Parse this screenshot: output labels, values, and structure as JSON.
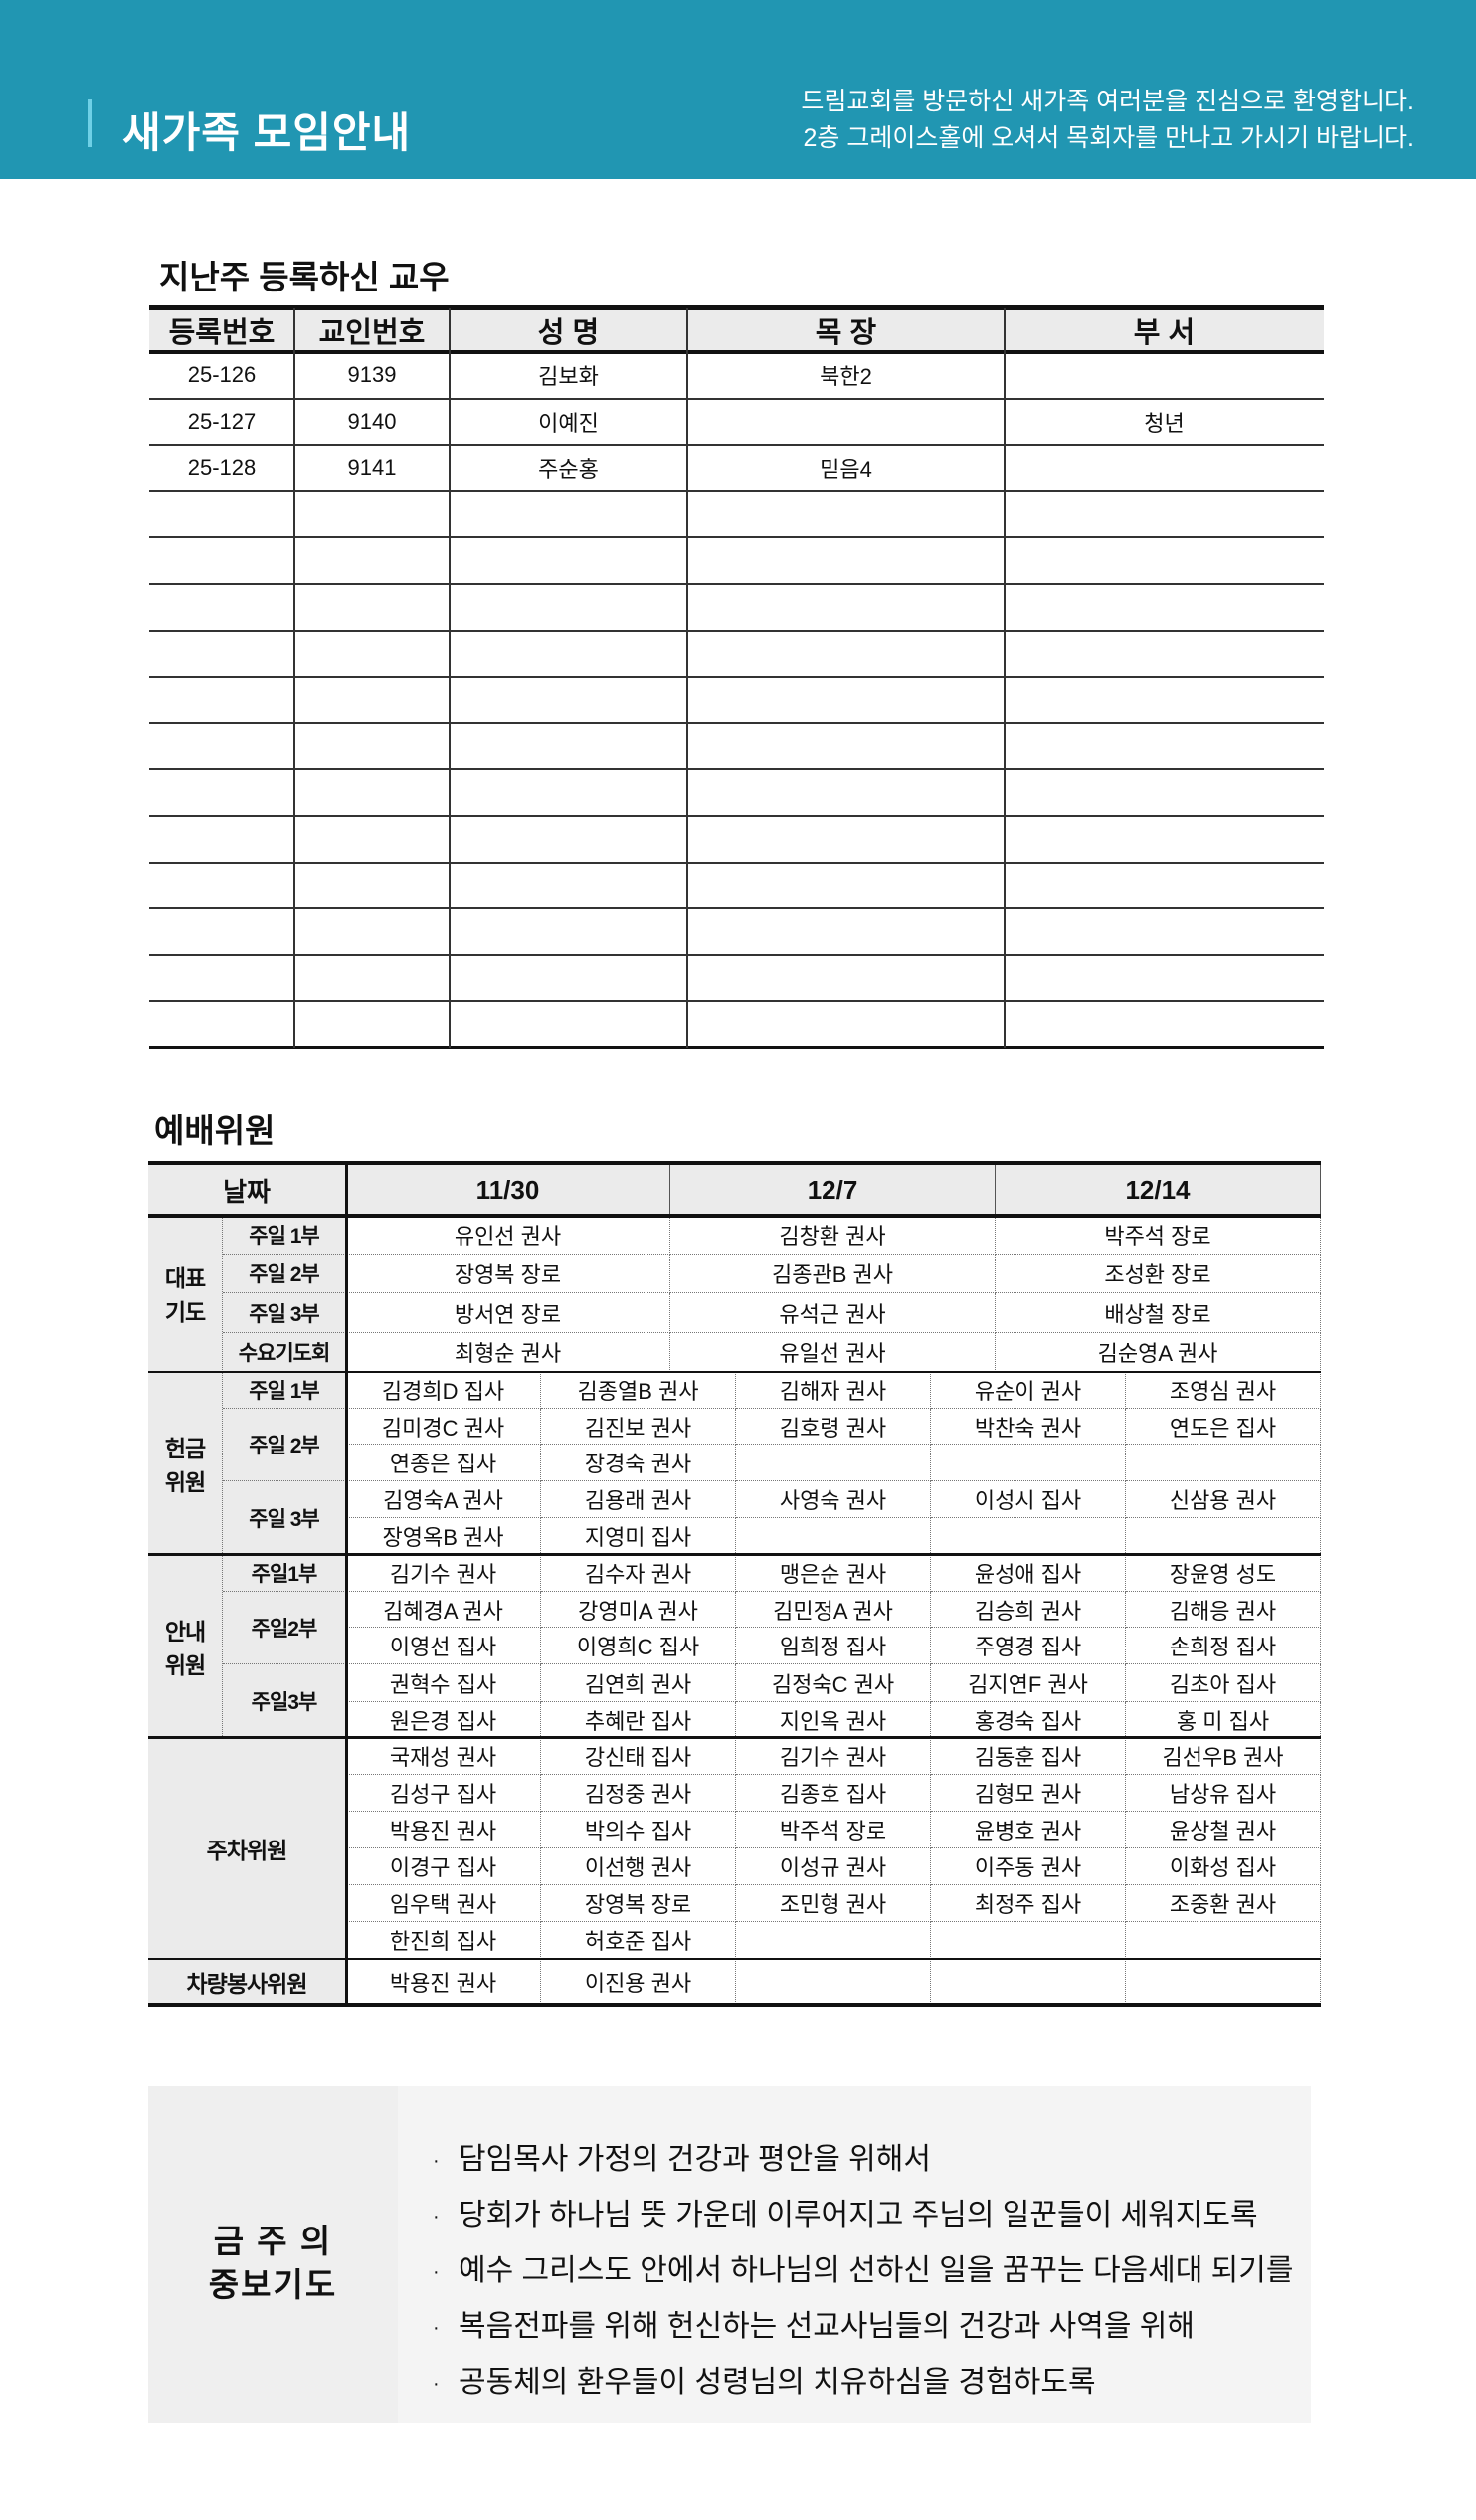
{
  "header": {
    "title": "새가족 모임안내",
    "message_line1": "드림교회를 방문하신 새가족 여러분을 진심으로 환영합니다.",
    "message_line2": "2층 그레이스홀에 오셔서 목회자를 만나고 가시기 바랍니다.",
    "bg_color": "#2196b2"
  },
  "registrants": {
    "title": "지난주 등록하신 교우",
    "columns": [
      "등록번호",
      "교인번호",
      "성 명",
      "목 장",
      "부 서"
    ],
    "rows": [
      [
        "25-126",
        "9139",
        "김보화",
        "북한2",
        ""
      ],
      [
        "25-127",
        "9140",
        "이예진",
        "",
        "청년"
      ],
      [
        "25-128",
        "9141",
        "주순홍",
        "믿음4",
        ""
      ]
    ]
  },
  "worship": {
    "title": "예배위원",
    "date_label": "날짜",
    "dates": [
      "11/30",
      "12/7",
      "12/14"
    ],
    "prayer": {
      "label": "대표\n기도",
      "rows": [
        {
          "service": "주일 1부",
          "names": [
            "유인선 권사",
            "김창환 권사",
            "박주석 장로"
          ]
        },
        {
          "service": "주일 2부",
          "names": [
            "장영복 장로",
            "김종관B 권사",
            "조성환 장로"
          ]
        },
        {
          "service": "주일 3부",
          "names": [
            "방서연 장로",
            "유석근 권사",
            "배상철 장로"
          ]
        },
        {
          "service": "수요기도회",
          "names": [
            "최형순 권사",
            "유일선 권사",
            "김순영A 권사"
          ]
        }
      ]
    },
    "offering": {
      "label": "헌금\n위원",
      "groups": [
        {
          "service": "주일 1부",
          "rows": [
            [
              "김경희D 집사",
              "김종열B 권사",
              "김해자 권사",
              "유순이 권사",
              "조영심 권사"
            ]
          ]
        },
        {
          "service": "주일 2부",
          "rows": [
            [
              "김미경C 권사",
              "김진보 권사",
              "김호령 권사",
              "박찬숙 권사",
              "연도은 집사"
            ],
            [
              "연종은 집사",
              "장경숙 권사",
              "",
              "",
              ""
            ]
          ]
        },
        {
          "service": "주일 3부",
          "rows": [
            [
              "김영숙A 권사",
              "김용래 권사",
              "사영숙 권사",
              "이성시 집사",
              "신삼용 권사"
            ],
            [
              "장영옥B 권사",
              "지영미 집사",
              "",
              "",
              ""
            ]
          ]
        }
      ]
    },
    "usher": {
      "label": "안내\n위원",
      "groups": [
        {
          "service": "주일1부",
          "rows": [
            [
              "김기수 권사",
              "김수자 권사",
              "맹은순 권사",
              "윤성애 집사",
              "장윤영 성도"
            ]
          ]
        },
        {
          "service": "주일2부",
          "rows": [
            [
              "김혜경A 권사",
              "강영미A 권사",
              "김민정A 권사",
              "김승희 권사",
              "김해응 권사"
            ],
            [
              "이영선 집사",
              "이영희C 집사",
              "임희정 집사",
              "주영경 집사",
              "손희정 집사"
            ]
          ]
        },
        {
          "service": "주일3부",
          "rows": [
            [
              "권혁수 집사",
              "김연희 권사",
              "김정숙C 권사",
              "김지연F 권사",
              "김초아 집사"
            ],
            [
              "원은경 집사",
              "추혜란 집사",
              "지인옥 권사",
              "홍경숙 집사",
              "홍  미 집사"
            ]
          ]
        }
      ]
    },
    "parking": {
      "label": "주차위원",
      "rows": [
        [
          "국재성 권사",
          "강신태 집사",
          "김기수 권사",
          "김동훈 집사",
          "김선우B 권사"
        ],
        [
          "김성구 집사",
          "김정중 권사",
          "김종호 집사",
          "김형모 권사",
          "남상유 집사"
        ],
        [
          "박용진 권사",
          "박의수 집사",
          "박주석 장로",
          "윤병호 권사",
          "윤상철 권사"
        ],
        [
          "이경구 집사",
          "이선행 권사",
          "이성규 권사",
          "이주동 권사",
          "이화성 집사"
        ],
        [
          "임우택 권사",
          "장영복 장로",
          "조민형 권사",
          "최정주 집사",
          "조중환 권사"
        ],
        [
          "한진희 집사",
          "허호준 집사",
          "",
          "",
          ""
        ]
      ]
    },
    "vehicle": {
      "label": "차량봉사위원",
      "rows": [
        [
          "박용진 권사",
          "이진용 권사",
          "",
          "",
          ""
        ]
      ]
    }
  },
  "intercession": {
    "title": "금 주 의\n중보기도",
    "bullet": "·",
    "items": [
      "담임목사 가정의 건강과 평안을 위해서",
      "당회가 하나님 뜻 가운데 이루어지고 주님의 일꾼들이 세워지도록",
      "예수 그리스도 안에서 하나님의 선하신 일을 꿈꾸는 다음세대 되기를",
      "복음전파를 위해 헌신하는 선교사님들의 건강과 사역을 위해",
      "공동체의 환우들이 성령님의 치유하심을 경험하도록"
    ]
  }
}
